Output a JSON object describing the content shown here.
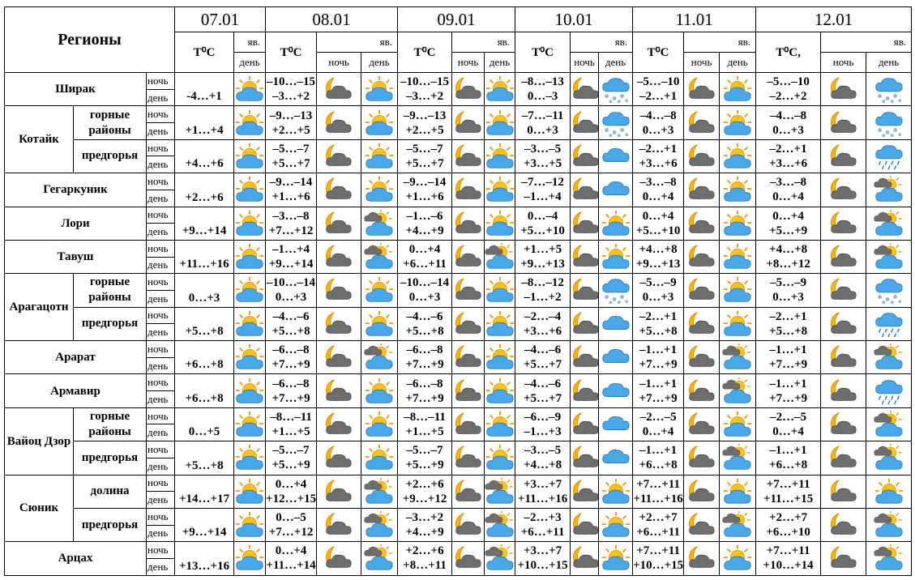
{
  "header": {
    "title": "Регионы",
    "dates": [
      "07.01",
      "08.01",
      "09.01",
      "10.01",
      "11.01",
      "12.01"
    ],
    "temp_label": "T⁰C",
    "temp_label_last": "T⁰C,",
    "weather_label": "яв.",
    "night": "ночь",
    "day": "день"
  },
  "regions": [
    {
      "name": "Ширак",
      "rows": [
        {
          "first_day": "-4…+1",
          "days": [
            [
              "–10…–15",
              "–3…+2"
            ],
            [
              "–10…–15",
              "–3…+2"
            ],
            [
              "–8…–13",
              "0…–3"
            ],
            [
              "–5…–10",
              "–2…+1"
            ],
            [
              "–5…–10",
              "–2…+2"
            ]
          ]
        }
      ]
    },
    {
      "name": "Котайк",
      "rows": [
        {
          "name": "горные районы",
          "first_day": "+1…+4",
          "days": [
            [
              "–9…–13",
              "+2…+5"
            ],
            [
              "–9…–13",
              "+2…+5"
            ],
            [
              "–7…–11",
              "0…+3"
            ],
            [
              "–4…–8",
              "0…+3"
            ],
            [
              "–4…–8",
              "0…+3"
            ]
          ]
        },
        {
          "name": "предгорья",
          "first_day": "+4…+6",
          "days": [
            [
              "–5…–7",
              "+5…+7"
            ],
            [
              "–5…–7",
              "+5…+7"
            ],
            [
              "–3…–5",
              "+3…+5"
            ],
            [
              "–2…+1",
              "+3…+6"
            ],
            [
              "–2…+1",
              "+3…+6"
            ]
          ]
        }
      ]
    },
    {
      "name": "Гегаркуник",
      "rows": [
        {
          "first_day": "+2…+6",
          "days": [
            [
              "–9…–14",
              "+1…+6"
            ],
            [
              "–9…–14",
              "+1…+6"
            ],
            [
              "–7…–12",
              "–1…+4"
            ],
            [
              "–3…–8",
              "0…+4"
            ],
            [
              "–3…–8",
              "0…+4"
            ]
          ]
        }
      ]
    },
    {
      "name": "Лори",
      "rows": [
        {
          "first_day": "+9…+14",
          "days": [
            [
              "–3…–8",
              "+7…+12"
            ],
            [
              "–1…–6",
              "+4…+9"
            ],
            [
              "0…–4",
              "+5…+10"
            ],
            [
              "0…+4",
              "+5…+10"
            ],
            [
              "0…+4",
              "+5…+9"
            ]
          ]
        }
      ]
    },
    {
      "name": "Тавуш",
      "rows": [
        {
          "first_day": "+11…+16",
          "days": [
            [
              "–1…+4",
              "+9…+14"
            ],
            [
              "0…+4",
              "+6…+11"
            ],
            [
              "+1…+5",
              "+9…+13"
            ],
            [
              "+4…+8",
              "+9…+13"
            ],
            [
              "+4…+8",
              "+8…+12"
            ]
          ]
        }
      ]
    },
    {
      "name": "Арагацотн",
      "rows": [
        {
          "name": "горные районы",
          "first_day": "0…+3",
          "days": [
            [
              "–10…–14",
              "0…+3"
            ],
            [
              "–10…–14",
              "0…+3"
            ],
            [
              "–8…–12",
              "–1…+2"
            ],
            [
              "–5…–9",
              "0…+3"
            ],
            [
              "–5…–9",
              "0…+3"
            ]
          ]
        },
        {
          "name": "предгорья",
          "first_day": "+5…+8",
          "days": [
            [
              "–4…–6",
              "+5…+8"
            ],
            [
              "–4…–6",
              "+5…+8"
            ],
            [
              "–2…–4",
              "+3…+6"
            ],
            [
              "–2…+1",
              "+5…+8"
            ],
            [
              "–2…+1",
              "+5…+8"
            ]
          ]
        }
      ]
    },
    {
      "name": "Арарат",
      "rows": [
        {
          "first_day": "+6…+8",
          "days": [
            [
              "–6…–8",
              "+7…+9"
            ],
            [
              "–6…–8",
              "+7…+9"
            ],
            [
              "–4…–6",
              "+5…+7"
            ],
            [
              "–1…+1",
              "+7…+9"
            ],
            [
              "–1…+1",
              "+7…+9"
            ]
          ]
        }
      ]
    },
    {
      "name": "Армавир",
      "rows": [
        {
          "first_day": "+6…+8",
          "days": [
            [
              "–6…–8",
              "+7…+9"
            ],
            [
              "–6…–8",
              "+7…+9"
            ],
            [
              "–4…–6",
              "+5…+7"
            ],
            [
              "–1…+1",
              "+7…+9"
            ],
            [
              "–1…+1",
              "+7…+9"
            ]
          ]
        }
      ]
    },
    {
      "name": "Вайоц Дзор",
      "rows": [
        {
          "name": "горные районы",
          "first_day": "0…+5",
          "days": [
            [
              "–8…–11",
              "+1…+5"
            ],
            [
              "–8…–11",
              "+1…+5"
            ],
            [
              "–6…–9",
              "–1…+3"
            ],
            [
              "–2…–5",
              "0…+4"
            ],
            [
              "–2…–5",
              "0…+4"
            ]
          ]
        },
        {
          "name": "предгорья",
          "first_day": "+5…+8",
          "days": [
            [
              "–5…–7",
              "+5…+9"
            ],
            [
              "–5…–7",
              "+5…+9"
            ],
            [
              "–3…–5",
              "+4…+8"
            ],
            [
              "–1…+1",
              "+6…+8"
            ],
            [
              "–1…+1",
              "+6…+8"
            ]
          ]
        }
      ]
    },
    {
      "name": "Сюник",
      "rows": [
        {
          "name": "долина",
          "first_day": "+14…+17",
          "days": [
            [
              "0…+4",
              "+12…+15"
            ],
            [
              "+2…+6",
              "+9…+12"
            ],
            [
              "+3…+7",
              "+11…+16"
            ],
            [
              "+7…+11",
              "+11…+16"
            ],
            [
              "+7…+11",
              "+11…+15"
            ]
          ]
        },
        {
          "name": "предгорья",
          "first_day": "+9…+14",
          "days": [
            [
              "0…–5",
              "+7…+12"
            ],
            [
              "–3…+2",
              "+4…+9"
            ],
            [
              "–2…+3",
              "+6…+11"
            ],
            [
              "+2…+7",
              "+6…+11"
            ],
            [
              "+2…+7",
              "+6…+10"
            ]
          ]
        }
      ]
    },
    {
      "name": "Арцах",
      "rows": [
        {
          "first_day": "+13…+16",
          "days": [
            [
              "0…+4",
              "+11…+14"
            ],
            [
              "+2…+6",
              "+8…+11"
            ],
            [
              "+3…+7",
              "+10…+15"
            ],
            [
              "+7…+11",
              "+10…+15"
            ],
            [
              "+7…+11",
              "+10…+14"
            ]
          ]
        }
      ]
    }
  ]
}
